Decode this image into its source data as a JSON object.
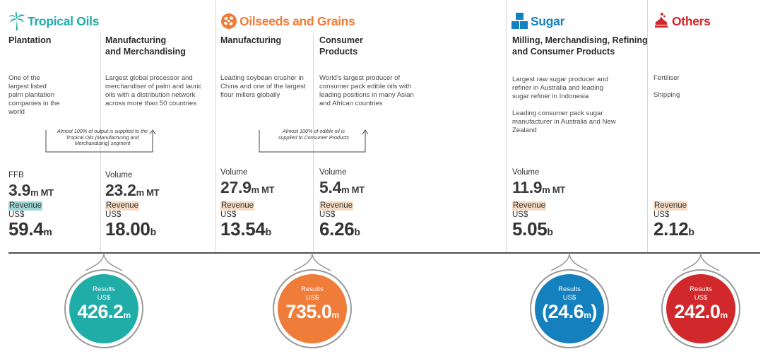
{
  "colors": {
    "tropical_oils": "#20ADA8",
    "oilseeds": "#F07C3A",
    "sugar": "#1580BE",
    "others": "#D0282B",
    "revenue_highlight": "#F6DCC4"
  },
  "segments": {
    "tropical_oils": {
      "title": "Tropical Oils",
      "icon": "palm-tree-icon",
      "result_label_1": "Results",
      "result_label_2": "US$",
      "result_value": "426.2",
      "result_unit": "m",
      "columns": {
        "plantation": {
          "heading_1": "Plantation",
          "heading_2": "",
          "description": "One of the largest listed palm plantation companies in the world",
          "metric_label": "FFB",
          "metric_value": "3.9",
          "metric_unit": "m MT",
          "revenue_label": "Revenue",
          "currency": "US$",
          "revenue_value": "59.4",
          "revenue_unit": "m"
        },
        "manufacturing": {
          "heading_1": "Manufacturing",
          "heading_2": "and Merchandising",
          "description": "Largest global processor and merchandiser of palm and lauric oils with a distribution network across more than 50 countries",
          "metric_label": "Volume",
          "metric_value": "23.2",
          "metric_unit": "m  MT",
          "revenue_label": "Revenue",
          "currency": "US$",
          "revenue_value": "18.00",
          "revenue_unit": "b"
        }
      },
      "note": "Almost 100% of output is supplied to the Tropical Oils (Manufacturing and Merchandising) segment"
    },
    "oilseeds": {
      "title": "Oilseeds and Grains",
      "icon": "grains-icon",
      "result_label_1": "Results",
      "result_label_2": "US$",
      "result_value": "735.0",
      "result_unit": "m",
      "columns": {
        "manufacturing": {
          "heading_1": "Manufacturing",
          "heading_2": "",
          "description": "Leading soybean crusher in China and one of the largest flour millers globally",
          "metric_label": "Volume",
          "metric_value": "27.9",
          "metric_unit": "m MT",
          "revenue_label": "Revenue",
          "currency": "US$",
          "revenue_value": "13.54",
          "revenue_unit": "b"
        },
        "consumer": {
          "heading_1": "Consumer",
          "heading_2": "Products",
          "description": "World's largest producer of consumer pack edible oils with leading positions in many Asian and African countries",
          "metric_label": "Volume",
          "metric_value": "5.4",
          "metric_unit": "m MT",
          "revenue_label": "Revenue",
          "currency": "US$",
          "revenue_value": "6.26",
          "revenue_unit": "b"
        }
      },
      "note": "Almost 100% of edible oil is supplied to Consumer Products"
    },
    "sugar": {
      "title": "Sugar",
      "icon": "sugar-cubes-icon",
      "result_label_1": "Results",
      "result_label_2": "US$",
      "result_value": "(24.6",
      "result_unit": "m",
      "result_close": ")",
      "column": {
        "heading_1": "Milling, Merchandising, Refining",
        "heading_2": "and Consumer Products",
        "description_1": "Largest raw sugar producer and refiner in Australia and leading sugar refiner in Indonesia",
        "description_2": "Leading consumer pack sugar manufacturer in Australia and New Zealand",
        "metric_label": "Volume",
        "metric_value": "11.9",
        "metric_unit": "m MT",
        "revenue_label": "Revenue",
        "currency": "US$",
        "revenue_value": "5.05",
        "revenue_unit": "b"
      }
    },
    "others": {
      "title": "Others",
      "icon": "others-icon",
      "result_label_1": "Results",
      "result_label_2": "US$",
      "result_value": "242.0",
      "result_unit": "m",
      "column": {
        "description_1": "Fertiliser",
        "description_2": "Shipping",
        "revenue_label": "Revenue",
        "currency": "US$",
        "revenue_value": "2.12",
        "revenue_unit": "b"
      }
    }
  }
}
